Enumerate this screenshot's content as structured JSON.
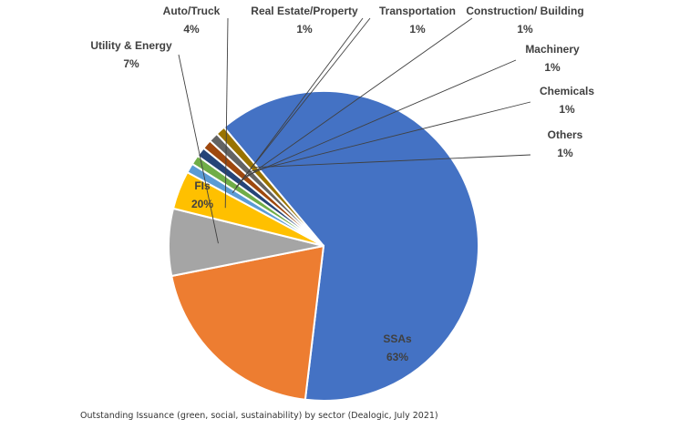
{
  "chart_data": {
    "type": "pie",
    "slices": [
      {
        "label": "SSAs",
        "value_label": "63%",
        "value": 63,
        "color": "#4472c4"
      },
      {
        "label": "FIs",
        "value_label": "20%",
        "value": 20,
        "color": "#ed7d31"
      },
      {
        "label": "Utility & Energy",
        "value_label": "7%",
        "value": 7,
        "color": "#a5a5a5"
      },
      {
        "label": "Auto/Truck",
        "value_label": "4%",
        "value": 4,
        "color": "#ffc000"
      },
      {
        "label": "Real Estate/Property",
        "value_label": "1%",
        "value": 1,
        "color": "#5b9bd5"
      },
      {
        "label": "Transportation",
        "value_label": "1%",
        "value": 1,
        "color": "#70ad47"
      },
      {
        "label": "Construction/ Building",
        "value_label": "1%",
        "value": 1,
        "color": "#264478"
      },
      {
        "label": "Machinery",
        "value_label": "1%",
        "value": 1,
        "color": "#9e480e"
      },
      {
        "label": "Chemicals",
        "value_label": "1%",
        "value": 1,
        "color": "#636363"
      },
      {
        "label": "Others",
        "value_label": "1%",
        "value": 1,
        "color": "#997300"
      }
    ]
  },
  "caption": "Outstanding Issuance (green, social, sustainability) by sector (Dealogic, July 2021)"
}
